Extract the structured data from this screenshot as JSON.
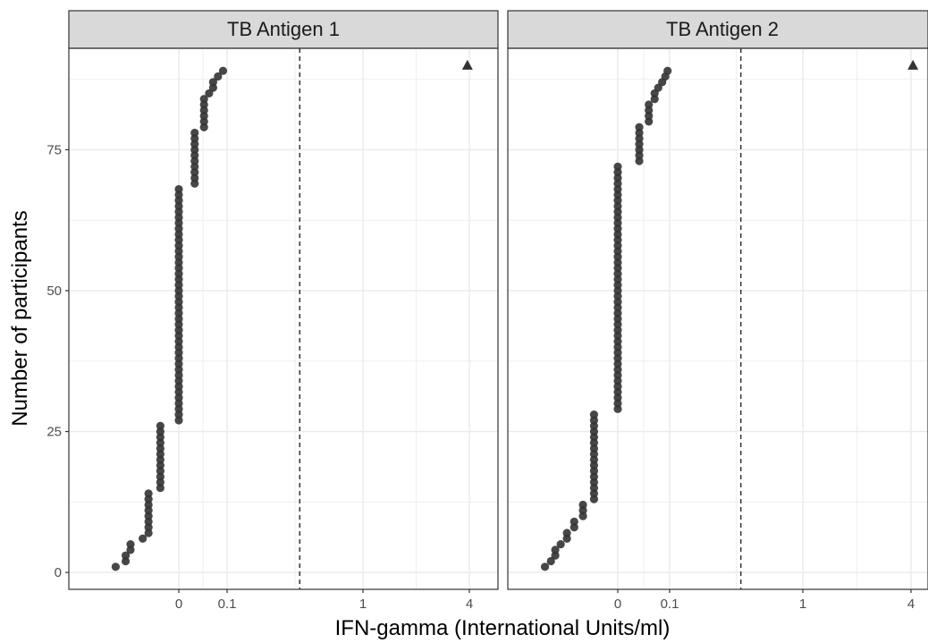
{
  "chart_data": {
    "type": "scatter",
    "title": "",
    "xlabel": "IFN-gamma (International Units/ml)",
    "ylabel": "Number of participants",
    "x_scale": "pseudo-log",
    "x_tick_labels": [
      "0",
      "0.1",
      "1",
      "4"
    ],
    "y_tick_labels": [
      "0",
      "25",
      "50",
      "75"
    ],
    "ylim": [
      -3,
      93
    ],
    "cutoff_line": 0.35,
    "grid": true,
    "colors": {
      "point": "#333333",
      "strip_fill": "#d9d9d9",
      "border": "#333333",
      "grid": "#ebebeb",
      "cutoff": "#333333"
    },
    "panels": [
      {
        "label": "TB Antigen 1",
        "groups": [
          {
            "x": -0.22,
            "from": 1,
            "to": 1
          },
          {
            "x": -0.13,
            "from": 2,
            "to": 3
          },
          {
            "x": -0.1,
            "from": 4,
            "to": 5
          },
          {
            "x": -0.05,
            "from": 6,
            "to": 6
          },
          {
            "x": -0.035,
            "from": 7,
            "to": 14
          },
          {
            "x": -0.015,
            "from": 15,
            "to": 26
          },
          {
            "x": 0.0,
            "from": 27,
            "to": 68
          },
          {
            "x": 0.012,
            "from": 69,
            "to": 78
          },
          {
            "x": 0.025,
            "from": 79,
            "to": 84
          },
          {
            "x": 0.035,
            "from": 85,
            "to": 85
          },
          {
            "x": 0.045,
            "from": 86,
            "to": 87
          },
          {
            "x": 0.06,
            "from": 88,
            "to": 88
          },
          {
            "x": 0.08,
            "from": 89,
            "to": 89
          }
        ],
        "outlier": {
          "x": 3.9,
          "y": 90,
          "shape": "triangle"
        }
      },
      {
        "label": "TB Antigen 2",
        "groups": [
          {
            "x": -0.28,
            "from": 1,
            "to": 1
          },
          {
            "x": -0.21,
            "from": 2,
            "to": 2
          },
          {
            "x": -0.17,
            "from": 3,
            "to": 4
          },
          {
            "x": -0.13,
            "from": 5,
            "to": 5
          },
          {
            "x": -0.095,
            "from": 6,
            "to": 7
          },
          {
            "x": -0.065,
            "from": 8,
            "to": 9
          },
          {
            "x": -0.04,
            "from": 10,
            "to": 12
          },
          {
            "x": -0.02,
            "from": 13,
            "to": 28
          },
          {
            "x": 0.0,
            "from": 29,
            "to": 72
          },
          {
            "x": 0.017,
            "from": 73,
            "to": 79
          },
          {
            "x": 0.032,
            "from": 80,
            "to": 83
          },
          {
            "x": 0.045,
            "from": 84,
            "to": 85
          },
          {
            "x": 0.055,
            "from": 86,
            "to": 86
          },
          {
            "x": 0.068,
            "from": 87,
            "to": 87
          },
          {
            "x": 0.08,
            "from": 88,
            "to": 88
          },
          {
            "x": 0.09,
            "from": 89,
            "to": 89
          }
        ],
        "outlier": {
          "x": 4.1,
          "y": 90,
          "shape": "triangle"
        }
      }
    ]
  }
}
